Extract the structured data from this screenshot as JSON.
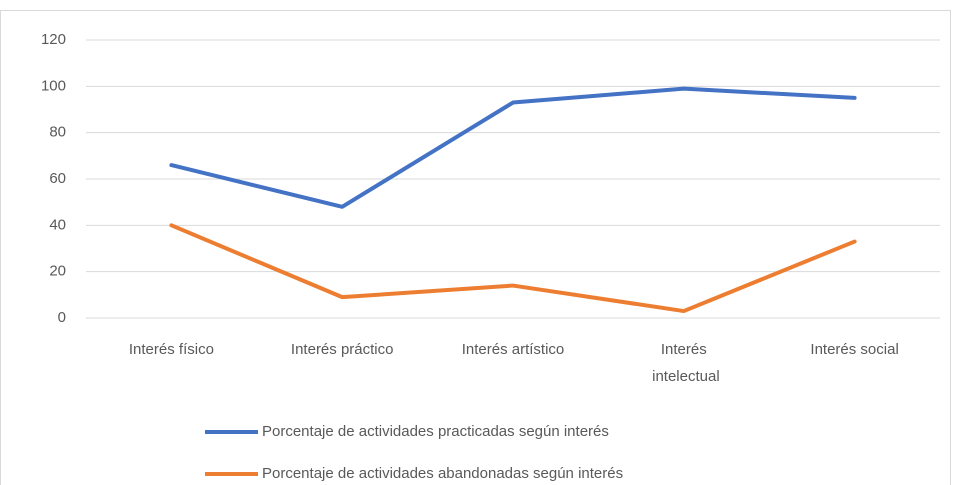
{
  "chart_data": {
    "type": "line",
    "categories": [
      "Interés físico",
      "Interés práctico",
      "Interés artístico",
      "Interés intelectual",
      "Interés social"
    ],
    "series": [
      {
        "name": "Porcentaje de actividades practicadas según interés",
        "color": "#4472c4",
        "values": [
          66,
          48,
          93,
          99,
          95
        ]
      },
      {
        "name": "Porcentaje de actividades abandonadas según interés",
        "color": "#ed7d31",
        "values": [
          40,
          9,
          14,
          3,
          33
        ]
      }
    ],
    "ylim": [
      0,
      120
    ],
    "yticks": [
      0,
      20,
      40,
      60,
      80,
      100,
      120
    ],
    "grid": true,
    "legend": "bottom"
  }
}
